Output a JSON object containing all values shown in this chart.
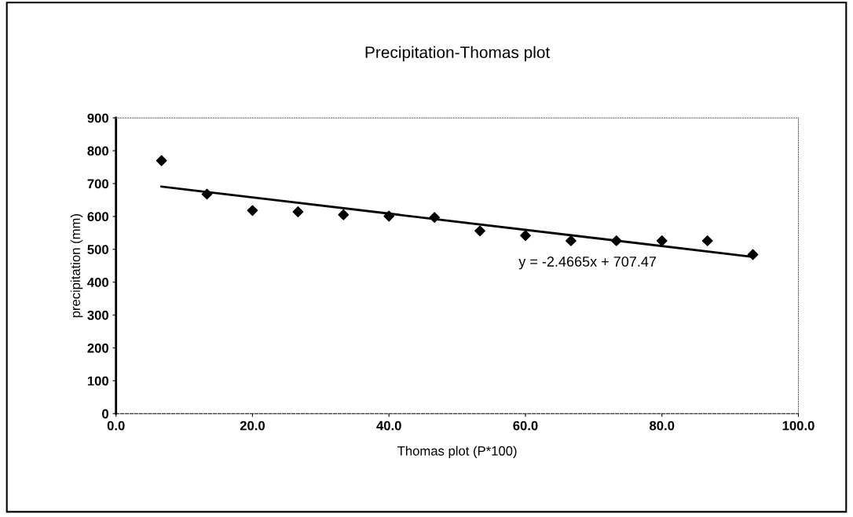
{
  "chart_data": {
    "type": "scatter",
    "title": "Precipitation-Thomas plot",
    "xlabel": "Thomas plot (P*100)",
    "ylabel": "precipitation (mm)",
    "x": [
      6.67,
      13.33,
      20.0,
      26.67,
      33.33,
      40.0,
      46.67,
      53.33,
      60.0,
      66.67,
      73.33,
      80.0,
      86.67,
      93.33
    ],
    "series": [
      {
        "color": "#000000",
        "marker": "diamond",
        "values": [
          770,
          668,
          618,
          614,
          605,
          601,
          597,
          556,
          542,
          526,
          526,
          526,
          526,
          484
        ]
      },
      {
        "type": "line",
        "color": "#000000",
        "marker": "none",
        "x": [
          6.67,
          93.33
        ],
        "values": [
          691,
          477
        ]
      }
    ],
    "annotations": [
      "y = -2.4665x + 707.47"
    ],
    "xlim": [
      0,
      100
    ],
    "xticks": [
      {
        "value": 0,
        "label": "0.0"
      },
      {
        "value": 20,
        "label": "20.0"
      },
      {
        "value": 40,
        "label": "40.0"
      },
      {
        "value": 60,
        "label": "60.0"
      },
      {
        "value": 80,
        "label": "80.0"
      },
      {
        "value": 100,
        "label": "100.0"
      }
    ],
    "ylim": [
      0,
      900
    ],
    "yticks": [
      0,
      100,
      200,
      300,
      400,
      500,
      600,
      700,
      800,
      900
    ],
    "grid": false,
    "legend": false
  }
}
